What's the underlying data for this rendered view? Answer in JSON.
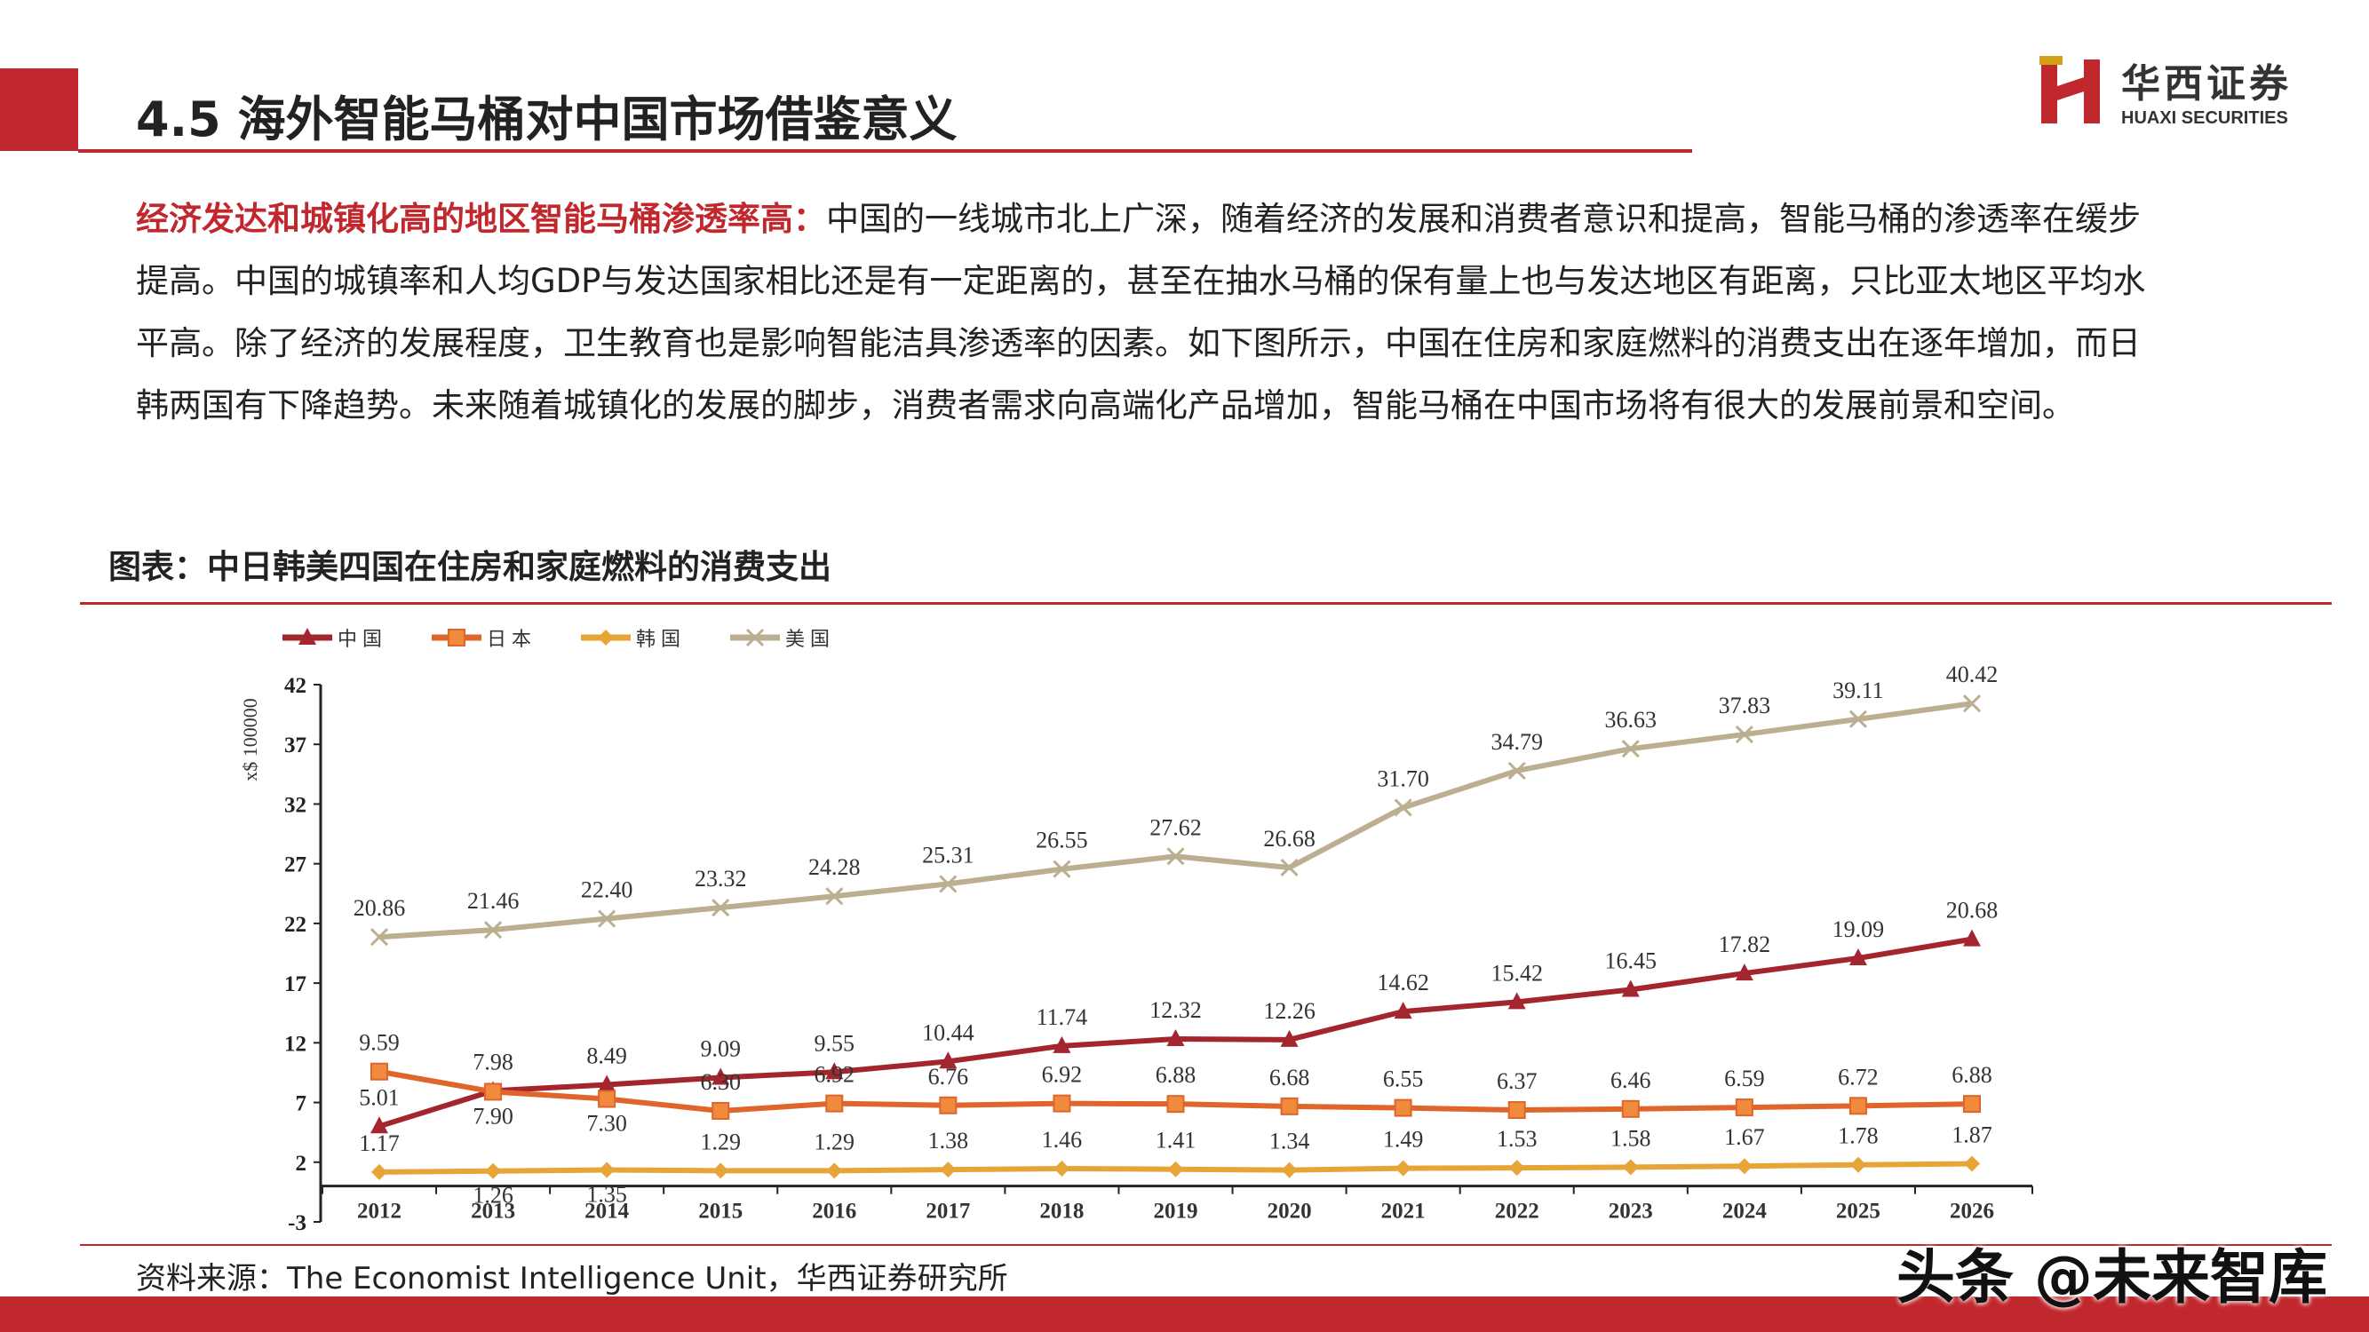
{
  "header": {
    "title": "4.5 海外智能马桶对中国市场借鉴意义",
    "logo_cn": "华西证券",
    "logo_en": "HUAXI SECURITIES"
  },
  "body": {
    "highlight": "经济发达和城镇化高的地区智能马桶渗透率高：",
    "text": "中国的一线城市北上广深，随着经济的发展和消费者意识和提高，智能马桶的渗透率在缓步提高。中国的城镇率和人均GDP与发达国家相比还是有一定距离的，甚至在抽水马桶的保有量上也与发达地区有距离，只比亚太地区平均水平高。除了经济的发展程度，卫生教育也是影响智能洁具渗透率的因素。如下图所示，中国在住房和家庭燃料的消费支出在逐年增加，而日韩两国有下降趋势。未来随着城镇化的发展的脚步，消费者需求向高端化产品增加，智能马桶在中国市场将有很大的发展前景和空间。"
  },
  "caption": "图表：中日韩美四国在住房和家庭燃料的消费支出",
  "source": "资料来源：The Economist Intelligence Unit，华西证券研究所",
  "watermark": "头条 @未来智库",
  "colors": {
    "accent": "#C0282D",
    "china": "#A3262F",
    "japan": "#E0652B",
    "korea": "#E8A537",
    "usa": "#BCAE90"
  },
  "chart_data": {
    "type": "line",
    "ylabel": "x$ 100000",
    "ylim": [
      -3,
      42
    ],
    "yticks": [
      -3,
      2,
      7,
      12,
      17,
      22,
      27,
      32,
      37,
      42
    ],
    "legend_position": "top-left",
    "categories": [
      "2012",
      "2013",
      "2014",
      "2015",
      "2016",
      "2017",
      "2018",
      "2019",
      "2020",
      "2021",
      "2022",
      "2023",
      "2024",
      "2025",
      "2026"
    ],
    "series": [
      {
        "name": "中国",
        "marker": "triangle",
        "color": "#A3262F",
        "values": [
          5.01,
          7.98,
          8.49,
          9.09,
          9.55,
          10.44,
          11.74,
          12.32,
          12.26,
          14.62,
          15.42,
          16.45,
          17.82,
          19.09,
          20.68
        ]
      },
      {
        "name": "日本",
        "marker": "square",
        "color": "#E0652B",
        "values": [
          9.59,
          7.9,
          7.3,
          6.3,
          6.92,
          6.76,
          6.92,
          6.88,
          6.68,
          6.55,
          6.37,
          6.46,
          6.59,
          6.72,
          6.88
        ]
      },
      {
        "name": "韩国",
        "marker": "diamond",
        "color": "#E8A537",
        "values": [
          1.17,
          1.26,
          1.35,
          1.29,
          1.29,
          1.38,
          1.46,
          1.41,
          1.34,
          1.49,
          1.53,
          1.58,
          1.67,
          1.78,
          1.87
        ]
      },
      {
        "name": "美国",
        "marker": "x",
        "color": "#BCAE90",
        "values": [
          20.86,
          21.46,
          22.4,
          23.32,
          24.28,
          25.31,
          26.55,
          27.62,
          26.68,
          31.7,
          34.79,
          36.63,
          37.83,
          39.11,
          40.42
        ]
      }
    ]
  }
}
